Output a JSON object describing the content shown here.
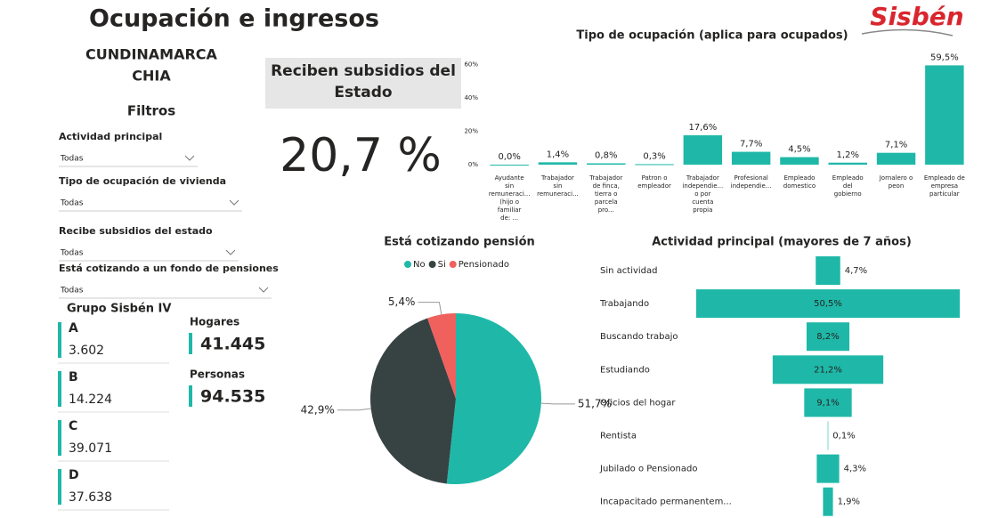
{
  "header": {
    "title": "Ocupación e ingresos",
    "department": "CUNDINAMARCA",
    "municipality": "CHIA",
    "logo": "Sisbén"
  },
  "filters": {
    "title": "Filtros",
    "items": [
      {
        "label": "Actividad principal",
        "value": "Todas"
      },
      {
        "label": "Tipo de ocupación de vivienda",
        "value": "Todas"
      },
      {
        "label": "Recibe subsidios del estado",
        "value": "Todas"
      },
      {
        "label": "Está cotizando a un fondo de pensiones",
        "value": "Todas"
      }
    ]
  },
  "subsidy": {
    "title": "Reciben subsidios del Estado",
    "value": "20,7 %"
  },
  "groups": {
    "title": "Grupo Sisbén IV",
    "items": [
      {
        "name": "A",
        "value": "3.602"
      },
      {
        "name": "B",
        "value": "14.224"
      },
      {
        "name": "C",
        "value": "39.071"
      },
      {
        "name": "D",
        "value": "37.638"
      }
    ]
  },
  "totals": [
    {
      "name": "Hogares",
      "value": "41.445"
    },
    {
      "name": "Personas",
      "value": "94.535"
    }
  ],
  "chart_data": [
    {
      "type": "bar",
      "title": "Tipo de ocupación (aplica para ocupados)",
      "categories": [
        "Ayudante sin remuneraci... (hijo o familiar de: ...",
        "Trabajador sin remuneraci...",
        "Trabajador de finca, tierra o parcela pro...",
        "Patron o empleador",
        "Trabajador independie... o por cuenta propia",
        "Profesional independie...",
        "Empleado domestico",
        "Empleado del gobierno",
        "Jornalero o peon",
        "Empleado de empresa particular"
      ],
      "values": [
        0.0,
        1.4,
        0.8,
        0.3,
        17.6,
        7.7,
        4.5,
        1.2,
        7.1,
        59.5
      ],
      "value_labels": [
        "0,0%",
        "1,4%",
        "0,8%",
        "0,3%",
        "17,6%",
        "7,7%",
        "4,5%",
        "1,2%",
        "7,1%",
        "59,5%"
      ],
      "color": "#1fb8a8",
      "ylim": [
        0,
        64
      ],
      "yticks": [
        {
          "value": 0,
          "label": "0%"
        },
        {
          "value": 20,
          "label": "20%"
        },
        {
          "value": 40,
          "label": "40%"
        },
        {
          "value": 60,
          "label": "60%"
        }
      ]
    },
    {
      "type": "pie",
      "title": "Está cotizando pensión",
      "categories": [
        "No",
        "Si",
        "Pensionado"
      ],
      "values": [
        51.7,
        42.9,
        5.4
      ],
      "value_labels": [
        "51,7%",
        "42,9%",
        "5,4%"
      ],
      "colors": [
        "#1fb8a8",
        "#374243",
        "#f0605d"
      ]
    },
    {
      "type": "funnel",
      "title": "Actividad principal (mayores de 7 años)",
      "categories": [
        "Sin actividad",
        "Trabajando",
        "Buscando trabajo",
        "Estudiando",
        "Oficios del hogar",
        "Rentista",
        "Jubilado o Pensionado",
        "Incapacitado permanentem..."
      ],
      "values": [
        4.7,
        50.5,
        8.2,
        21.2,
        9.1,
        0.1,
        4.3,
        1.9
      ],
      "value_labels": [
        "4,7%",
        "50,5%",
        "8,2%",
        "21,2%",
        "9,1%",
        "0,1%",
        "4,3%",
        "1,9%"
      ],
      "color": "#1fb8a8"
    }
  ]
}
